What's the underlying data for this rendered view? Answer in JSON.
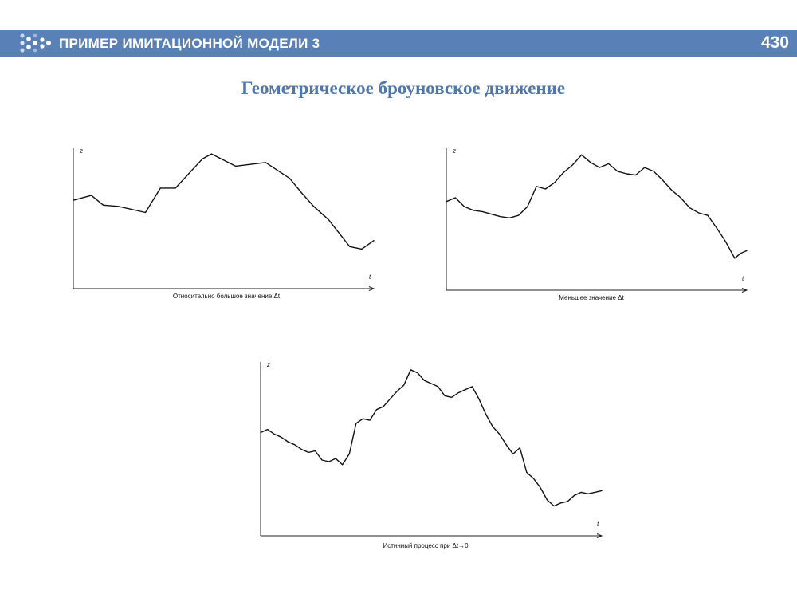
{
  "header": {
    "title": "ПРИМЕР ИМИТАЦИОННОЙ МОДЕЛИ 3",
    "page_number": "430",
    "logo_icon": "dots-arrow-icon",
    "accent_color": "#5a80b8"
  },
  "slide_title": "Геометрическое броуновское движение",
  "title_color": "#4f76ad",
  "chart_data": [
    {
      "type": "line",
      "caption": "Относительно большое значение Δt",
      "ylabel": "z",
      "xlabel": "t",
      "xlim": [
        0,
        1
      ],
      "ylim": [
        0,
        1
      ],
      "grid": false,
      "series": [
        {
          "x": [
            0,
            0.06,
            0.1,
            0.15,
            0.24,
            0.29,
            0.34,
            0.43,
            0.46,
            0.54,
            0.64,
            0.72,
            0.76,
            0.8,
            0.85,
            0.92,
            0.96,
            1.0
          ],
          "values": [
            0.6,
            0.64,
            0.56,
            0.55,
            0.5,
            0.7,
            0.7,
            0.94,
            0.98,
            0.88,
            0.91,
            0.78,
            0.66,
            0.55,
            0.44,
            0.22,
            0.2,
            0.27
          ]
        }
      ]
    },
    {
      "type": "line",
      "caption": "Меньшее значение Δt",
      "ylabel": "z",
      "xlabel": "t",
      "xlim": [
        0,
        1
      ],
      "ylim": [
        0,
        1
      ],
      "grid": false,
      "series": [
        {
          "x": [
            0,
            0.03,
            0.06,
            0.09,
            0.12,
            0.15,
            0.18,
            0.21,
            0.24,
            0.27,
            0.3,
            0.33,
            0.36,
            0.39,
            0.42,
            0.45,
            0.48,
            0.51,
            0.54,
            0.57,
            0.6,
            0.63,
            0.66,
            0.69,
            0.72,
            0.75,
            0.78,
            0.81,
            0.84,
            0.87,
            0.9,
            0.93,
            0.96,
            0.98,
            1.0
          ],
          "values": [
            0.59,
            0.62,
            0.55,
            0.52,
            0.51,
            0.49,
            0.47,
            0.46,
            0.48,
            0.55,
            0.71,
            0.69,
            0.74,
            0.82,
            0.88,
            0.96,
            0.9,
            0.86,
            0.89,
            0.83,
            0.81,
            0.8,
            0.86,
            0.83,
            0.76,
            0.68,
            0.62,
            0.54,
            0.5,
            0.48,
            0.38,
            0.27,
            0.14,
            0.18,
            0.2
          ]
        }
      ]
    },
    {
      "type": "line",
      "caption": "Истинный процесс при Δt→0",
      "ylabel": "z",
      "xlabel": "t",
      "xlim": [
        0,
        1
      ],
      "ylim": [
        0,
        1
      ],
      "grid": false,
      "series": [
        {
          "x": [
            0,
            0.02,
            0.04,
            0.06,
            0.08,
            0.1,
            0.12,
            0.14,
            0.16,
            0.18,
            0.2,
            0.22,
            0.24,
            0.26,
            0.28,
            0.3,
            0.32,
            0.34,
            0.36,
            0.38,
            0.4,
            0.42,
            0.44,
            0.46,
            0.48,
            0.5,
            0.52,
            0.54,
            0.56,
            0.58,
            0.6,
            0.62,
            0.64,
            0.66,
            0.68,
            0.7,
            0.72,
            0.74,
            0.76,
            0.78,
            0.8,
            0.82,
            0.84,
            0.86,
            0.88,
            0.9,
            0.92,
            0.94,
            0.96,
            0.98,
            1.0
          ],
          "values": [
            0.56,
            0.58,
            0.55,
            0.53,
            0.5,
            0.48,
            0.45,
            0.43,
            0.44,
            0.38,
            0.37,
            0.39,
            0.35,
            0.42,
            0.62,
            0.65,
            0.64,
            0.71,
            0.73,
            0.78,
            0.83,
            0.87,
            0.97,
            0.95,
            0.9,
            0.88,
            0.86,
            0.8,
            0.79,
            0.82,
            0.84,
            0.86,
            0.78,
            0.68,
            0.6,
            0.55,
            0.48,
            0.42,
            0.46,
            0.3,
            0.26,
            0.2,
            0.12,
            0.08,
            0.1,
            0.11,
            0.15,
            0.17,
            0.16,
            0.17,
            0.18
          ]
        }
      ]
    }
  ]
}
